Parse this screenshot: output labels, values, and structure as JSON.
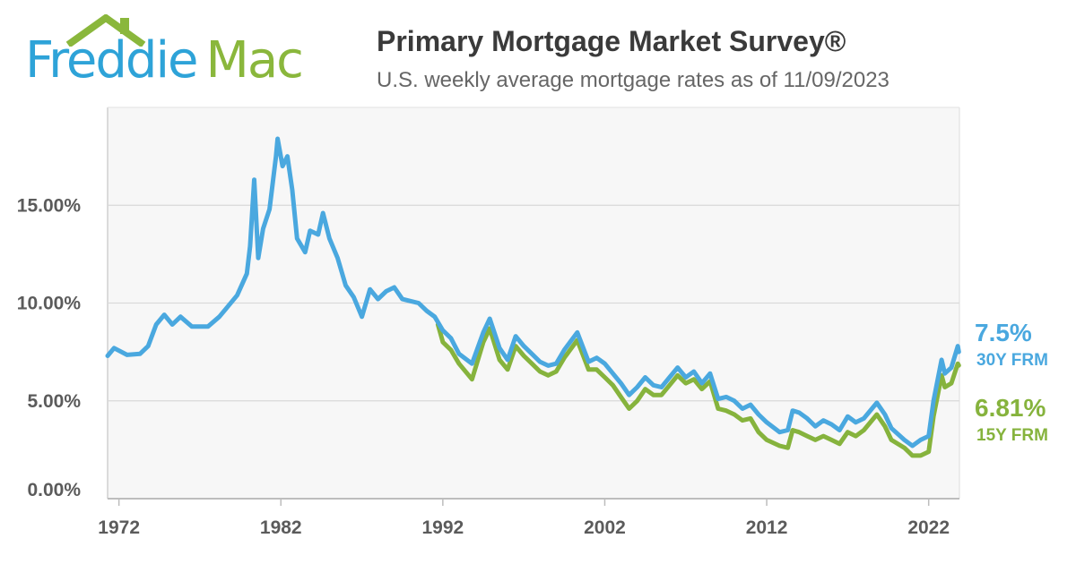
{
  "logo": {
    "part1": "Freddie",
    "part2": "Mac",
    "colors": {
      "blue": "#2ea3d8",
      "green": "#8ab73c"
    }
  },
  "header": {
    "title": "Primary Mortgage Market Survey®",
    "subtitle": "U.S. weekly average mortgage rates as of 11/09/2023"
  },
  "chart_data": {
    "type": "line",
    "title": "Primary Mortgage Market Survey®",
    "subtitle": "U.S. weekly average mortgage rates as of 11/09/2023",
    "xlabel": "",
    "ylabel": "",
    "ylim": [
      0,
      20
    ],
    "xlim": [
      1971.3,
      2023.9
    ],
    "y_ticks": [
      "0.00%",
      "5.00%",
      "10.00%",
      "15.00%"
    ],
    "x_ticks": [
      "1972",
      "1982",
      "1992",
      "2002",
      "2012",
      "2022"
    ],
    "grid": true,
    "series": [
      {
        "name": "30Y FRM",
        "color": "#4aa8df",
        "end_value": "7.5%",
        "points": [
          [
            1971.3,
            7.3
          ],
          [
            1971.7,
            7.7
          ],
          [
            1972.5,
            7.35
          ],
          [
            1973.3,
            7.4
          ],
          [
            1973.8,
            7.8
          ],
          [
            1974.3,
            8.9
          ],
          [
            1974.8,
            9.4
          ],
          [
            1975.3,
            8.9
          ],
          [
            1975.8,
            9.3
          ],
          [
            1976.5,
            8.8
          ],
          [
            1977.5,
            8.8
          ],
          [
            1978.2,
            9.3
          ],
          [
            1978.8,
            9.9
          ],
          [
            1979.3,
            10.4
          ],
          [
            1979.9,
            11.5
          ],
          [
            1980.1,
            12.9
          ],
          [
            1980.35,
            16.3
          ],
          [
            1980.6,
            12.3
          ],
          [
            1980.9,
            13.8
          ],
          [
            1981.3,
            14.8
          ],
          [
            1981.7,
            17.5
          ],
          [
            1981.8,
            18.4
          ],
          [
            1982.1,
            17
          ],
          [
            1982.4,
            17.5
          ],
          [
            1982.7,
            15.8
          ],
          [
            1983.0,
            13.3
          ],
          [
            1983.5,
            12.6
          ],
          [
            1983.8,
            13.7
          ],
          [
            1984.3,
            13.5
          ],
          [
            1984.6,
            14.6
          ],
          [
            1985.0,
            13.3
          ],
          [
            1985.5,
            12.3
          ],
          [
            1986.0,
            10.9
          ],
          [
            1986.5,
            10.3
          ],
          [
            1987.0,
            9.3
          ],
          [
            1987.5,
            10.7
          ],
          [
            1988.0,
            10.2
          ],
          [
            1988.5,
            10.6
          ],
          [
            1989.0,
            10.8
          ],
          [
            1989.5,
            10.2
          ],
          [
            1990.0,
            10.1
          ],
          [
            1990.5,
            10.0
          ],
          [
            1991.0,
            9.6
          ],
          [
            1991.5,
            9.3
          ],
          [
            1992.0,
            8.6
          ],
          [
            1992.5,
            8.2
          ],
          [
            1993.0,
            7.4
          ],
          [
            1993.8,
            6.9
          ],
          [
            1994.5,
            8.5
          ],
          [
            1994.9,
            9.2
          ],
          [
            1995.5,
            7.7
          ],
          [
            1996.0,
            7.1
          ],
          [
            1996.5,
            8.3
          ],
          [
            1997.0,
            7.8
          ],
          [
            1997.5,
            7.4
          ],
          [
            1998.0,
            7.0
          ],
          [
            1998.5,
            6.8
          ],
          [
            1999.0,
            6.9
          ],
          [
            1999.5,
            7.6
          ],
          [
            2000.3,
            8.5
          ],
          [
            2001.0,
            7.0
          ],
          [
            2001.5,
            7.2
          ],
          [
            2002.0,
            6.9
          ],
          [
            2002.5,
            6.4
          ],
          [
            2003.0,
            5.9
          ],
          [
            2003.5,
            5.3
          ],
          [
            2004.0,
            5.7
          ],
          [
            2004.5,
            6.2
          ],
          [
            2005.0,
            5.8
          ],
          [
            2005.5,
            5.7
          ],
          [
            2006.0,
            6.2
          ],
          [
            2006.5,
            6.7
          ],
          [
            2007.0,
            6.2
          ],
          [
            2007.5,
            6.5
          ],
          [
            2008.0,
            5.9
          ],
          [
            2008.5,
            6.4
          ],
          [
            2009.0,
            5.1
          ],
          [
            2009.5,
            5.2
          ],
          [
            2010.0,
            5.0
          ],
          [
            2010.5,
            4.6
          ],
          [
            2011.0,
            4.8
          ],
          [
            2011.5,
            4.3
          ],
          [
            2012.0,
            3.9
          ],
          [
            2012.8,
            3.4
          ],
          [
            2013.3,
            3.5
          ],
          [
            2013.6,
            4.5
          ],
          [
            2014.0,
            4.4
          ],
          [
            2014.5,
            4.1
          ],
          [
            2015.0,
            3.7
          ],
          [
            2015.5,
            4.0
          ],
          [
            2016.0,
            3.8
          ],
          [
            2016.5,
            3.5
          ],
          [
            2017.0,
            4.2
          ],
          [
            2017.5,
            3.9
          ],
          [
            2018.0,
            4.1
          ],
          [
            2018.8,
            4.9
          ],
          [
            2019.3,
            4.3
          ],
          [
            2019.7,
            3.6
          ],
          [
            2020.5,
            3.0
          ],
          [
            2021.0,
            2.7
          ],
          [
            2021.5,
            3.0
          ],
          [
            2022.0,
            3.2
          ],
          [
            2022.3,
            5.0
          ],
          [
            2022.8,
            7.1
          ],
          [
            2023.0,
            6.4
          ],
          [
            2023.4,
            6.7
          ],
          [
            2023.8,
            7.8
          ],
          [
            2023.86,
            7.5
          ]
        ]
      },
      {
        "name": "15Y FRM",
        "color": "#86b33d",
        "end_value": "6.81%",
        "points": [
          [
            1991.7,
            8.9
          ],
          [
            1992.0,
            8.0
          ],
          [
            1992.5,
            7.6
          ],
          [
            1993.0,
            6.9
          ],
          [
            1993.8,
            6.1
          ],
          [
            1994.5,
            8.0
          ],
          [
            1994.9,
            8.7
          ],
          [
            1995.5,
            7.1
          ],
          [
            1996.0,
            6.6
          ],
          [
            1996.5,
            7.8
          ],
          [
            1997.0,
            7.3
          ],
          [
            1997.5,
            6.9
          ],
          [
            1998.0,
            6.5
          ],
          [
            1998.5,
            6.3
          ],
          [
            1999.0,
            6.5
          ],
          [
            1999.5,
            7.2
          ],
          [
            2000.3,
            8.1
          ],
          [
            2001.0,
            6.6
          ],
          [
            2001.5,
            6.6
          ],
          [
            2002.0,
            6.2
          ],
          [
            2002.5,
            5.8
          ],
          [
            2003.0,
            5.2
          ],
          [
            2003.5,
            4.6
          ],
          [
            2004.0,
            5.0
          ],
          [
            2004.5,
            5.6
          ],
          [
            2005.0,
            5.3
          ],
          [
            2005.5,
            5.3
          ],
          [
            2006.0,
            5.8
          ],
          [
            2006.5,
            6.3
          ],
          [
            2007.0,
            5.9
          ],
          [
            2007.5,
            6.1
          ],
          [
            2008.0,
            5.6
          ],
          [
            2008.5,
            6.0
          ],
          [
            2009.0,
            4.6
          ],
          [
            2009.5,
            4.5
          ],
          [
            2010.0,
            4.3
          ],
          [
            2010.5,
            4.0
          ],
          [
            2011.0,
            4.1
          ],
          [
            2011.5,
            3.4
          ],
          [
            2012.0,
            3.0
          ],
          [
            2012.8,
            2.7
          ],
          [
            2013.3,
            2.6
          ],
          [
            2013.6,
            3.5
          ],
          [
            2014.0,
            3.4
          ],
          [
            2014.5,
            3.2
          ],
          [
            2015.0,
            3.0
          ],
          [
            2015.5,
            3.2
          ],
          [
            2016.0,
            3.0
          ],
          [
            2016.5,
            2.8
          ],
          [
            2017.0,
            3.4
          ],
          [
            2017.5,
            3.2
          ],
          [
            2018.0,
            3.5
          ],
          [
            2018.8,
            4.3
          ],
          [
            2019.3,
            3.7
          ],
          [
            2019.7,
            3.0
          ],
          [
            2020.5,
            2.6
          ],
          [
            2021.0,
            2.2
          ],
          [
            2021.5,
            2.2
          ],
          [
            2022.0,
            2.4
          ],
          [
            2022.3,
            4.2
          ],
          [
            2022.8,
            6.3
          ],
          [
            2023.0,
            5.7
          ],
          [
            2023.4,
            5.9
          ],
          [
            2023.8,
            6.9
          ],
          [
            2023.86,
            6.81
          ]
        ]
      }
    ]
  }
}
